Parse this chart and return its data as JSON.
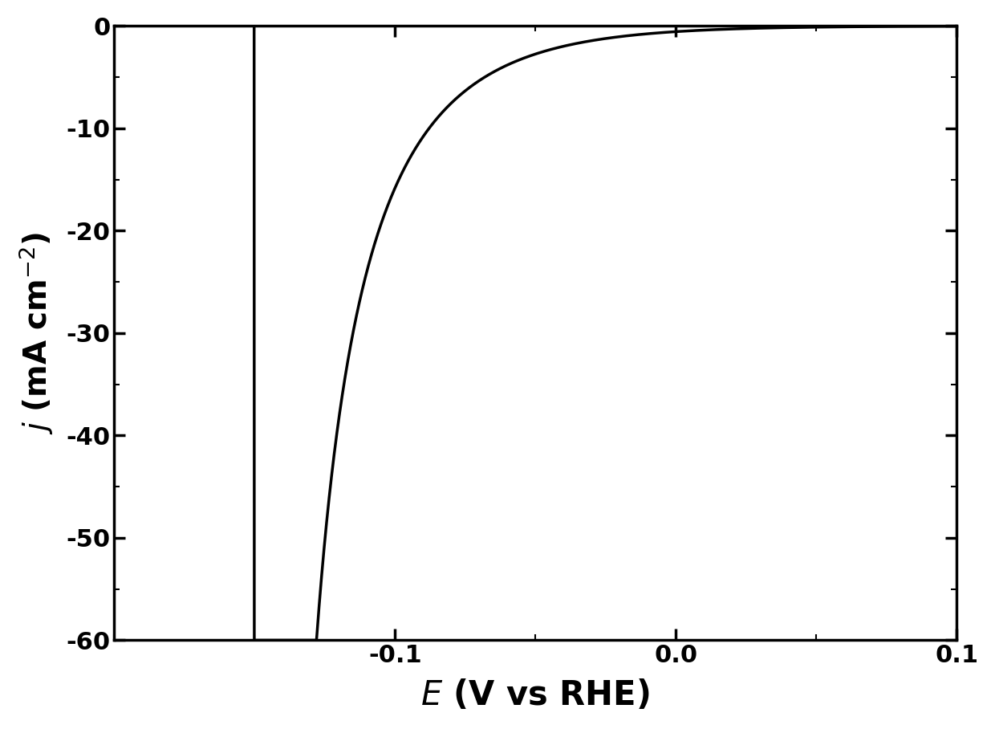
{
  "xlabel": "$E$ (V vs RHE)",
  "ylabel": "$j$ (mA cm$^{-2}$)",
  "xlim": [
    -0.2,
    0.1
  ],
  "ylim": [
    -60,
    0
  ],
  "xticks": [
    -0.1,
    0.0,
    0.1
  ],
  "yticks": [
    0,
    -10,
    -20,
    -30,
    -40,
    -50,
    -60
  ],
  "line_color": "#000000",
  "line_width": 2.5,
  "background_color": "#ffffff",
  "j_limit": -60.0,
  "j0": 0.55,
  "b_tafel": 0.032,
  "E_rev": 0.0
}
